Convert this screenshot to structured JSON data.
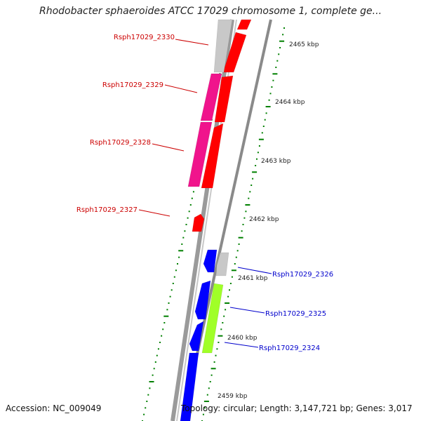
{
  "title": "Rhodobacter sphaeroides ATCC 17029 chromosome 1, complete ge...",
  "accession_text": "Accession: NC_009049",
  "topology_text": "Topology: circular; Length: 3,147,721 bp; Genes: 3,017",
  "colors": {
    "red_gene": "#ff0000",
    "pink_gene": "#f0148c",
    "gray_gene": "#c8c8c8",
    "blue_gene": "#0000ff",
    "green_gene": "#a0ff28",
    "ticks": "#008000",
    "left_label": "#cc0000",
    "right_label": "#0000cc",
    "backbone": "#888888"
  },
  "kbp_labels": [
    "2465 kbp",
    "2464 kbp",
    "2463 kbp",
    "2462 kbp",
    "2461 kbp",
    "2460 kbp",
    "2459 kbp"
  ],
  "gene_labels": [
    {
      "text": "Rsph17029_2330",
      "side": "left"
    },
    {
      "text": "Rsph17029_2329",
      "side": "left"
    },
    {
      "text": "Rsph17029_2328",
      "side": "left"
    },
    {
      "text": "Rsph17029_2327",
      "side": "left"
    },
    {
      "text": "Rsph17029_2326",
      "side": "right"
    },
    {
      "text": "Rsph17029_2325",
      "side": "right"
    },
    {
      "text": "Rsph17029_2324",
      "side": "right"
    }
  ]
}
